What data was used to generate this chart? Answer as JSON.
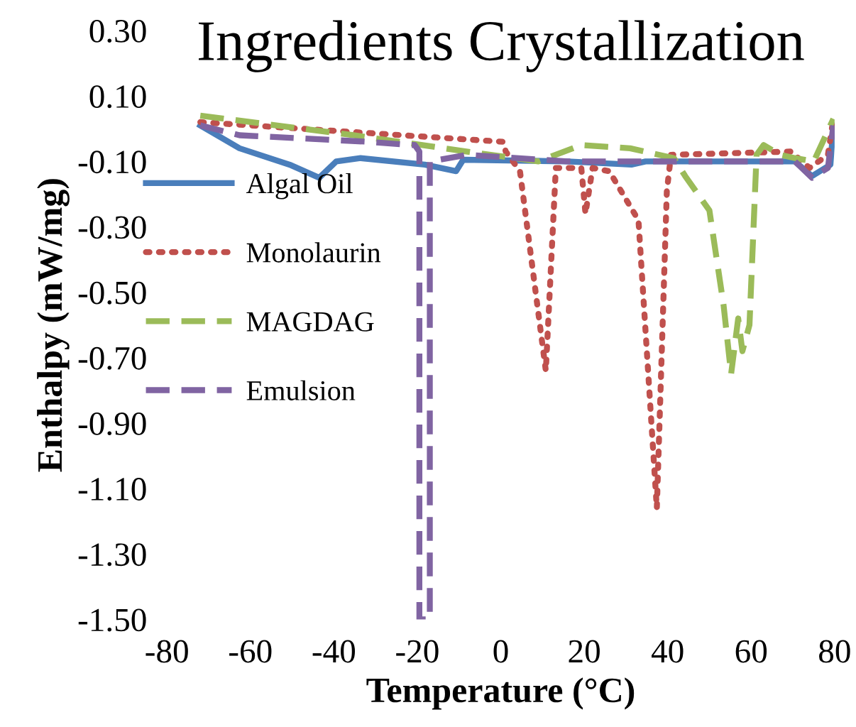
{
  "chart_data": {
    "type": "line",
    "title": "Ingredients Crystallization",
    "xlabel": "Temperature (°C)",
    "ylabel": "Enthalpy (mW/mg)",
    "xlim": [
      -80,
      80
    ],
    "xticks": [
      -80,
      -60,
      -40,
      -20,
      0,
      20,
      40,
      60,
      80
    ],
    "ylim": [
      -1.5,
      0.3
    ],
    "yticks": [
      {
        "value": 0.3,
        "label": "0.30"
      },
      {
        "value": 0.1,
        "label": "0.10"
      },
      {
        "value": -0.1,
        "label": "-0.10"
      },
      {
        "value": -0.3,
        "label": "-0.30"
      },
      {
        "value": -0.5,
        "label": "-0.50"
      },
      {
        "value": -0.7,
        "label": "-0.70"
      },
      {
        "value": -0.9,
        "label": "-0.90"
      },
      {
        "value": -1.1,
        "label": "-1.10"
      },
      {
        "value": -1.3,
        "label": "-1.30"
      },
      {
        "value": -1.5,
        "label": "-1.50"
      }
    ],
    "grid": false,
    "legend": "left",
    "marker": "none",
    "series": [
      {
        "name": "Algal Oil",
        "color": "#4a7ebb",
        "line_style": "solid",
        "x": [
          -72,
          -62.6,
          -50.6,
          -43.5,
          -39.4,
          -33.6,
          -18.2,
          -10.7,
          -9,
          16,
          31.3,
          34.7,
          70.5,
          74.6,
          79,
          79.7
        ],
        "values": [
          0.01,
          -0.06,
          -0.11,
          -0.15,
          -0.1,
          -0.09,
          -0.11,
          -0.13,
          -0.095,
          -0.1,
          -0.11,
          -0.1,
          -0.1,
          -0.145,
          -0.11,
          0.01
        ]
      },
      {
        "name": "Monolaurin",
        "color": "#c0504d",
        "line_style": "dotted",
        "x": [
          -72,
          0.5,
          1.2,
          4.6,
          10.8,
          13.2,
          19.3,
          20.3,
          22,
          26,
          33,
          37.4,
          39.8,
          40.8,
          69.5,
          74,
          78.4,
          79.7
        ],
        "values": [
          0.02,
          -0.04,
          -0.07,
          -0.13,
          -0.74,
          -0.12,
          -0.12,
          -0.26,
          -0.12,
          -0.13,
          -0.28,
          -1.16,
          -0.19,
          -0.08,
          -0.07,
          -0.12,
          -0.08,
          0.03
        ]
      },
      {
        "name": "MAGDAG",
        "color": "#9bbb59",
        "line_style": "dashed",
        "x": [
          -72,
          -35.3,
          -8,
          9,
          19.3,
          31,
          41.5,
          44.2,
          50,
          53.4,
          55.2,
          56.9,
          57.9,
          59.6,
          61.3,
          63,
          67,
          70.5,
          75,
          79.7
        ],
        "values": [
          0.04,
          -0.02,
          -0.07,
          -0.1,
          -0.05,
          -0.06,
          -0.09,
          -0.145,
          -0.25,
          -0.54,
          -0.75,
          -0.58,
          -0.68,
          -0.6,
          -0.08,
          -0.05,
          -0.08,
          -0.09,
          -0.1,
          0.03
        ]
      },
      {
        "name": "Emulsion",
        "color": "#8064a2",
        "line_style": "dashed",
        "x": [
          -72,
          -62.6,
          -31.9,
          -21.6,
          -20.6,
          -19.5,
          -19.5,
          -17,
          -17,
          -8,
          16,
          70.5,
          74.6,
          78.4,
          79.7
        ],
        "values": [
          0.01,
          -0.02,
          -0.04,
          -0.05,
          -0.05,
          -0.07,
          -1.5,
          -1.5,
          -0.1,
          -0.08,
          -0.1,
          -0.1,
          -0.15,
          -0.12,
          0.01
        ]
      }
    ]
  }
}
